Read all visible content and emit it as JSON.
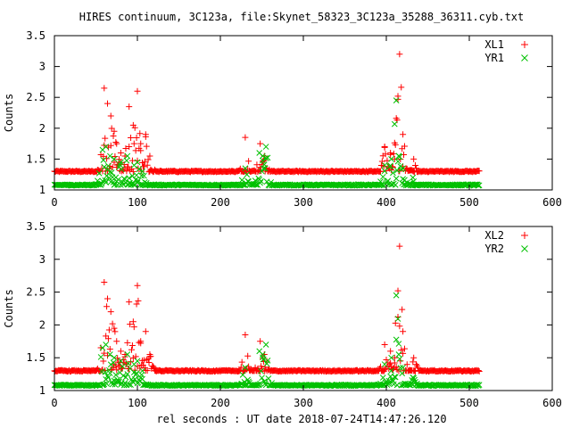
{
  "figure": {
    "title": "HIRES continuum, 3C123a, file:Skynet_58323_3C123a_35288_36311.cyb.txt",
    "xlabel": "rel seconds : UT date 2018-07-24T14:47:26.120"
  },
  "colors": {
    "left": "#ff0000",
    "right": "#00c000",
    "text": "#000000"
  },
  "chart_data": [
    {
      "type": "scatter",
      "ylabel": "Counts",
      "xlim": [
        0,
        600
      ],
      "ylim": [
        1,
        3.5
      ],
      "xticks": [
        "0",
        "100",
        "200",
        "300",
        "400",
        "500",
        "600"
      ],
      "yticks": [
        "1",
        "1.5",
        "2",
        "2.5",
        "3",
        "3.5"
      ],
      "legend_position": "top-right",
      "series": [
        {
          "name": "XL1",
          "marker": "plus",
          "color": "#ff0000",
          "baseline": 1.3,
          "x_range": [
            0,
            512
          ],
          "step": 1,
          "peaks": [
            {
              "x": 60,
              "y": 2.65
            },
            {
              "x": 64,
              "y": 2.4
            },
            {
              "x": 68,
              "y": 2.2
            },
            {
              "x": 72,
              "y": 1.95
            },
            {
              "x": 75,
              "y": 1.75
            },
            {
              "x": 80,
              "y": 1.6
            },
            {
              "x": 85,
              "y": 1.55
            },
            {
              "x": 90,
              "y": 2.35
            },
            {
              "x": 95,
              "y": 2.05
            },
            {
              "x": 100,
              "y": 2.6
            },
            {
              "x": 104,
              "y": 1.75
            },
            {
              "x": 110,
              "y": 1.9
            },
            {
              "x": 115,
              "y": 1.55
            },
            {
              "x": 230,
              "y": 1.85
            },
            {
              "x": 248,
              "y": 1.75
            },
            {
              "x": 253,
              "y": 1.55
            },
            {
              "x": 398,
              "y": 1.7
            },
            {
              "x": 405,
              "y": 1.6
            },
            {
              "x": 410,
              "y": 1.5
            },
            {
              "x": 414,
              "y": 2.52
            },
            {
              "x": 416,
              "y": 3.2
            },
            {
              "x": 420,
              "y": 1.9
            },
            {
              "x": 433,
              "y": 1.5
            }
          ]
        },
        {
          "name": "YR1",
          "marker": "cross",
          "color": "#00c000",
          "baseline": 1.08,
          "x_range": [
            0,
            512
          ],
          "step": 1,
          "peaks": [
            {
              "x": 58,
              "y": 1.65
            },
            {
              "x": 62,
              "y": 1.7
            },
            {
              "x": 67,
              "y": 1.55
            },
            {
              "x": 72,
              "y": 1.5
            },
            {
              "x": 80,
              "y": 1.45
            },
            {
              "x": 88,
              "y": 1.55
            },
            {
              "x": 96,
              "y": 1.4
            },
            {
              "x": 100,
              "y": 1.45
            },
            {
              "x": 106,
              "y": 1.3
            },
            {
              "x": 230,
              "y": 1.35
            },
            {
              "x": 247,
              "y": 1.6
            },
            {
              "x": 251,
              "y": 1.55
            },
            {
              "x": 255,
              "y": 1.7
            },
            {
              "x": 398,
              "y": 1.4
            },
            {
              "x": 406,
              "y": 1.5
            },
            {
              "x": 412,
              "y": 2.45
            },
            {
              "x": 415,
              "y": 1.55
            },
            {
              "x": 420,
              "y": 1.35
            },
            {
              "x": 432,
              "y": 1.2
            }
          ]
        }
      ]
    },
    {
      "type": "scatter",
      "ylabel": "Counts",
      "xlim": [
        0,
        600
      ],
      "ylim": [
        1,
        3.5
      ],
      "xticks": [
        "0",
        "100",
        "200",
        "300",
        "400",
        "500",
        "600"
      ],
      "yticks": [
        "1",
        "1.5",
        "2",
        "2.5",
        "3",
        "3.5"
      ],
      "legend_position": "top-right",
      "series": [
        {
          "name": "XL2",
          "marker": "plus",
          "color": "#ff0000",
          "baseline": 1.3,
          "x_range": [
            0,
            512
          ],
          "step": 1,
          "peaks": [
            {
              "x": 60,
              "y": 2.65
            },
            {
              "x": 64,
              "y": 2.4
            },
            {
              "x": 68,
              "y": 2.2
            },
            {
              "x": 72,
              "y": 1.95
            },
            {
              "x": 75,
              "y": 1.75
            },
            {
              "x": 80,
              "y": 1.6
            },
            {
              "x": 85,
              "y": 1.55
            },
            {
              "x": 90,
              "y": 2.35
            },
            {
              "x": 95,
              "y": 2.05
            },
            {
              "x": 100,
              "y": 2.6
            },
            {
              "x": 104,
              "y": 1.75
            },
            {
              "x": 110,
              "y": 1.9
            },
            {
              "x": 115,
              "y": 1.55
            },
            {
              "x": 230,
              "y": 1.85
            },
            {
              "x": 248,
              "y": 1.75
            },
            {
              "x": 253,
              "y": 1.55
            },
            {
              "x": 398,
              "y": 1.7
            },
            {
              "x": 405,
              "y": 1.6
            },
            {
              "x": 410,
              "y": 1.5
            },
            {
              "x": 414,
              "y": 2.52
            },
            {
              "x": 416,
              "y": 3.2
            },
            {
              "x": 420,
              "y": 1.9
            },
            {
              "x": 433,
              "y": 1.5
            }
          ]
        },
        {
          "name": "YR2",
          "marker": "cross",
          "color": "#00c000",
          "baseline": 1.08,
          "x_range": [
            0,
            512
          ],
          "step": 1,
          "peaks": [
            {
              "x": 58,
              "y": 1.65
            },
            {
              "x": 62,
              "y": 1.7
            },
            {
              "x": 67,
              "y": 1.55
            },
            {
              "x": 72,
              "y": 1.5
            },
            {
              "x": 80,
              "y": 1.45
            },
            {
              "x": 88,
              "y": 1.55
            },
            {
              "x": 96,
              "y": 1.4
            },
            {
              "x": 100,
              "y": 1.45
            },
            {
              "x": 106,
              "y": 1.3
            },
            {
              "x": 230,
              "y": 1.35
            },
            {
              "x": 247,
              "y": 1.6
            },
            {
              "x": 251,
              "y": 1.55
            },
            {
              "x": 255,
              "y": 1.7
            },
            {
              "x": 398,
              "y": 1.4
            },
            {
              "x": 406,
              "y": 1.5
            },
            {
              "x": 412,
              "y": 2.45
            },
            {
              "x": 415,
              "y": 1.55
            },
            {
              "x": 420,
              "y": 1.35
            },
            {
              "x": 432,
              "y": 1.2
            }
          ]
        }
      ]
    }
  ]
}
